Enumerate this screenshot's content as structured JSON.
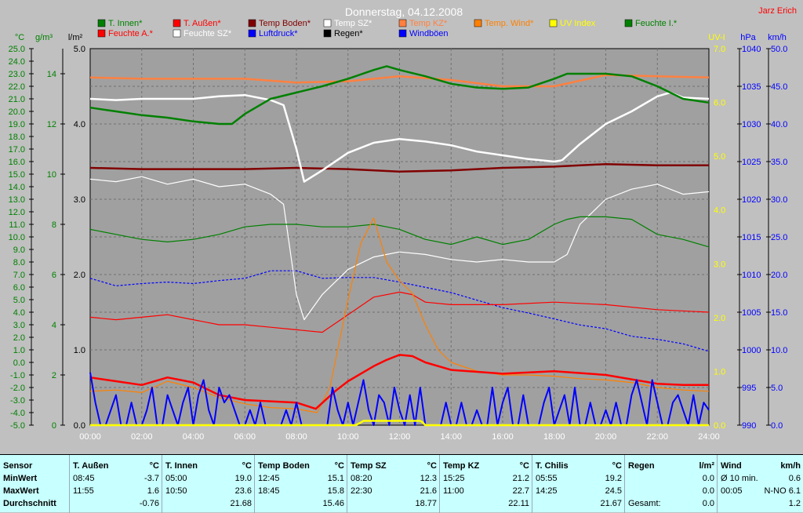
{
  "chart_data": {
    "type": "line",
    "title": "Donnerstag, 04.12.2008",
    "author": "Jarz Erich",
    "x_ticks": [
      "00:00",
      "02:00",
      "04:00",
      "06:00",
      "08:00",
      "10:00",
      "12:00",
      "14:00",
      "16:00",
      "18:00",
      "20:00",
      "22:00",
      "24:00"
    ],
    "xlim": [
      0,
      24
    ],
    "axes": {
      "temp": {
        "unit": "°C",
        "ylim": [
          -5,
          25
        ],
        "ticks": [
          "-5.0",
          "-4.0",
          "-3.0",
          "-2.0",
          "-1.0",
          "0.0",
          "1.0",
          "2.0",
          "3.0",
          "4.0",
          "5.0",
          "6.0",
          "7.0",
          "8.0",
          "9.0",
          "10.0",
          "11.0",
          "12.0",
          "13.0",
          "14.0",
          "15.0",
          "16.0",
          "17.0",
          "18.0",
          "19.0",
          "20.0",
          "21.0",
          "22.0",
          "23.0",
          "24.0",
          "25.0"
        ]
      },
      "humidity": {
        "unit": "g/m³",
        "ylim": [
          0,
          15
        ],
        "ticks": [
          "0",
          "2",
          "4",
          "6",
          "8",
          "10",
          "12",
          "14"
        ]
      },
      "rain": {
        "unit": "l/m²",
        "ylim": [
          0,
          5
        ],
        "ticks": [
          "0.0",
          "1.0",
          "2.0",
          "3.0",
          "4.0",
          "5.0"
        ]
      },
      "uv": {
        "unit": "UV-I",
        "ylim": [
          0,
          7
        ],
        "ticks": [
          "0.0",
          "1.0",
          "2.0",
          "3.0",
          "4.0",
          "5.0",
          "6.0",
          "7.0"
        ]
      },
      "pressure": {
        "unit": "hPa",
        "ylim": [
          990,
          1040
        ],
        "ticks": [
          "990",
          "995",
          "1000",
          "1005",
          "1010",
          "1015",
          "1020",
          "1025",
          "1030",
          "1035",
          "1040"
        ]
      },
      "wind": {
        "unit": "km/h",
        "ylim": [
          0,
          50
        ],
        "ticks": [
          "0.0",
          "5.0",
          "10.0",
          "15.0",
          "20.0",
          "25.0",
          "30.0",
          "35.0",
          "40.0",
          "45.0",
          "50.0"
        ]
      }
    },
    "legend": [
      {
        "name": "T. Innen*",
        "color": "#008000"
      },
      {
        "name": "T. Außen*",
        "color": "#ff0000"
      },
      {
        "name": "Temp Boden*",
        "color": "#800000"
      },
      {
        "name": "Temp SZ*",
        "color": "#ffffff"
      },
      {
        "name": "Temp KZ*",
        "color": "#ff8040"
      },
      {
        "name": "Temp. Wind*",
        "color": "#ff8000"
      },
      {
        "name": "UV Index",
        "color": "#ffff00"
      },
      {
        "name": "Feuchte I.*",
        "color": "#008000"
      },
      {
        "name": "Feuchte A.*",
        "color": "#ff0000"
      },
      {
        "name": "Feuchte SZ*",
        "color": "#ffffff"
      },
      {
        "name": "Luftdruck*",
        "color": "#0000ff"
      },
      {
        "name": "Regen*",
        "color": "#000000"
      },
      {
        "name": "Windböen",
        "color": "#0000ff"
      }
    ],
    "series": [
      {
        "key": "t_innen",
        "axis": "temp",
        "color": "#008000",
        "width": 2.5,
        "x": [
          0,
          1,
          2,
          3,
          4,
          5,
          5.5,
          6,
          7,
          8,
          9,
          10,
          11,
          11.5,
          12,
          13,
          14,
          15,
          16,
          17,
          18,
          18.5,
          19,
          20,
          21,
          22,
          23,
          24
        ],
        "y": [
          20.3,
          20.0,
          19.7,
          19.5,
          19.2,
          19.0,
          19.0,
          19.8,
          21.0,
          21.5,
          22.0,
          22.6,
          23.3,
          23.6,
          23.3,
          22.8,
          22.2,
          21.9,
          21.8,
          21.9,
          22.6,
          23.0,
          23.0,
          23.0,
          22.8,
          22.0,
          21.0,
          20.7
        ]
      },
      {
        "key": "t_aussen",
        "axis": "temp",
        "color": "#ff0000",
        "width": 2.5,
        "x": [
          0,
          1,
          2,
          3,
          4,
          5,
          6,
          7,
          8,
          8.75,
          9.5,
          10,
          11,
          11.5,
          12,
          12.5,
          13,
          14,
          16,
          18,
          20,
          22,
          23,
          24
        ],
        "y": [
          -1.2,
          -1.5,
          -1.8,
          -1.2,
          -1.6,
          -2.6,
          -3.0,
          -3.1,
          -3.2,
          -3.7,
          -2.3,
          -1.5,
          -0.3,
          0.2,
          0.6,
          0.5,
          0.0,
          -0.6,
          -0.9,
          -0.7,
          -1.0,
          -1.7,
          -1.8,
          -1.8
        ]
      },
      {
        "key": "t_boden",
        "axis": "temp",
        "color": "#800000",
        "width": 2.5,
        "x": [
          0,
          2,
          4,
          6,
          8,
          10,
          12,
          14,
          16,
          18,
          20,
          22,
          24
        ],
        "y": [
          15.5,
          15.4,
          15.4,
          15.4,
          15.5,
          15.4,
          15.2,
          15.3,
          15.5,
          15.6,
          15.8,
          15.7,
          15.7
        ]
      },
      {
        "key": "t_sz",
        "axis": "temp",
        "color": "#ffffff",
        "width": 2.5,
        "x": [
          0,
          1,
          2,
          3,
          4,
          5,
          6,
          7,
          7.5,
          8,
          8.3,
          9,
          10,
          11,
          12,
          13,
          14,
          15,
          16,
          17,
          18,
          18.3,
          19,
          20,
          21,
          22,
          22.5,
          23,
          24
        ],
        "y": [
          21.0,
          20.9,
          21.0,
          21.0,
          21.0,
          21.2,
          21.3,
          20.9,
          20.5,
          17.0,
          14.4,
          15.3,
          16.7,
          17.5,
          17.8,
          17.6,
          17.3,
          16.8,
          16.5,
          16.2,
          16.0,
          16.1,
          17.4,
          19.0,
          20.0,
          21.2,
          21.5,
          21.1,
          21.0
        ]
      },
      {
        "key": "t_kz",
        "axis": "temp",
        "color": "#ff8040",
        "width": 2.5,
        "x": [
          0,
          2,
          4,
          6,
          8,
          10,
          12,
          14,
          16,
          18,
          20,
          22,
          24
        ],
        "y": [
          22.7,
          22.6,
          22.6,
          22.6,
          22.3,
          22.4,
          22.8,
          22.5,
          22.0,
          22.0,
          22.9,
          22.8,
          22.7
        ]
      },
      {
        "key": "t_wind",
        "axis": "temp",
        "color": "#ff8000",
        "width": 1.2,
        "x": [
          0,
          1,
          2,
          3,
          4,
          5,
          6,
          7,
          8,
          8.8,
          9.3,
          10,
          10.5,
          11,
          11.5,
          12,
          12.5,
          13,
          13.5,
          14,
          15,
          16,
          17,
          18,
          19,
          20,
          21,
          22,
          23,
          24
        ],
        "y": [
          -2.3,
          -2.2,
          -2.4,
          -1.5,
          -2.0,
          -2.8,
          -3.3,
          -3.6,
          -3.7,
          -4.0,
          -2.0,
          5.0,
          9.5,
          11.5,
          8.0,
          6.5,
          5.5,
          3.0,
          1.0,
          0.0,
          -0.7,
          -1.0,
          -1.0,
          -1.1,
          -1.3,
          -1.4,
          -1.6,
          -2.0,
          -2.2,
          -2.3
        ]
      },
      {
        "key": "uv_index",
        "axis": "uv",
        "color": "#ffff00",
        "width": 2.5,
        "x": [
          0,
          10.3,
          10.5,
          10.6,
          12.8,
          12.9,
          13,
          24
        ],
        "y": [
          0,
          0,
          0.05,
          0.08,
          0.08,
          0.05,
          0,
          0
        ]
      },
      {
        "key": "feuchte_i",
        "axis": "humidity",
        "color": "#008000",
        "width": 1.2,
        "x": [
          0,
          1,
          2,
          3,
          4,
          5,
          6,
          7,
          8,
          9,
          10,
          11,
          12,
          13,
          14,
          15,
          16,
          17,
          18,
          18.5,
          19,
          20,
          21,
          22,
          23,
          24
        ],
        "y": [
          7.8,
          7.6,
          7.4,
          7.3,
          7.4,
          7.6,
          7.9,
          8.0,
          8.0,
          7.9,
          7.9,
          8.0,
          7.8,
          7.4,
          7.2,
          7.5,
          7.2,
          7.4,
          8.0,
          8.2,
          8.3,
          8.3,
          8.2,
          7.6,
          7.4,
          7.1
        ]
      },
      {
        "key": "feuchte_a",
        "axis": "humidity",
        "color": "#ff0000",
        "width": 1.2,
        "x": [
          0,
          1,
          2,
          3,
          4,
          5,
          6,
          7,
          8,
          9,
          10,
          11,
          12,
          12.5,
          13,
          14,
          16,
          18,
          20,
          22,
          24
        ],
        "y": [
          4.3,
          4.2,
          4.3,
          4.4,
          4.2,
          4.0,
          4.0,
          3.9,
          3.8,
          3.7,
          4.4,
          5.1,
          5.3,
          5.2,
          4.9,
          4.8,
          4.8,
          4.9,
          4.8,
          4.6,
          4.5
        ]
      },
      {
        "key": "feuchte_sz",
        "axis": "humidity",
        "color": "#ffffff",
        "width": 1.2,
        "x": [
          0,
          1,
          2,
          3,
          4,
          5,
          6,
          7,
          7.5,
          8,
          8.3,
          9,
          10,
          11,
          12,
          13,
          14,
          15,
          16,
          17,
          18,
          18.5,
          19,
          20,
          21,
          22,
          23,
          24
        ],
        "y": [
          9.8,
          9.7,
          9.9,
          9.6,
          9.8,
          9.5,
          9.6,
          9.2,
          8.8,
          5.2,
          4.2,
          5.2,
          6.2,
          6.7,
          6.9,
          6.8,
          6.6,
          6.5,
          6.6,
          6.5,
          6.5,
          6.8,
          8.0,
          9.0,
          9.4,
          9.6,
          9.2,
          9.3
        ]
      },
      {
        "key": "luftdruck",
        "axis": "pressure",
        "color": "#0000ff",
        "width": 1.2,
        "dashed": true,
        "x": [
          0,
          1,
          2,
          3,
          4,
          5,
          6,
          7,
          8,
          9,
          10,
          11,
          12,
          13,
          14,
          15,
          16,
          17,
          18,
          19,
          20,
          21,
          22,
          23,
          24
        ],
        "y": [
          1009.5,
          1008.5,
          1008.8,
          1009.0,
          1008.8,
          1009.2,
          1009.5,
          1010.5,
          1010.5,
          1009.5,
          1009.6,
          1009.6,
          1009.0,
          1008.3,
          1007.6,
          1006.6,
          1005.6,
          1004.9,
          1004.1,
          1003.3,
          1002.8,
          1001.8,
          1001.4,
          1000.8,
          999.8
        ]
      },
      {
        "key": "windboeen",
        "axis": "wind",
        "color": "#0000ff",
        "width": 2,
        "x": [
          0,
          0.2,
          0.4,
          0.6,
          0.8,
          1,
          1.2,
          1.4,
          1.6,
          1.8,
          2,
          2.2,
          2.4,
          2.6,
          2.8,
          3,
          3.2,
          3.4,
          3.6,
          3.8,
          4,
          4.2,
          4.4,
          4.6,
          4.8,
          5,
          5.2,
          5.4,
          5.6,
          5.8,
          6,
          6.2,
          6.4,
          6.6,
          6.8,
          7,
          7.2,
          7.4,
          7.6,
          7.8,
          8,
          8.2,
          8.4,
          8.6,
          8.8,
          9,
          9.2,
          9.4,
          9.6,
          9.8,
          10,
          10.2,
          10.4,
          10.6,
          10.8,
          11,
          11.2,
          11.4,
          11.6,
          11.8,
          12,
          12.2,
          12.4,
          12.6,
          12.8,
          13,
          13.2,
          13.4,
          13.6,
          13.8,
          14,
          14.2,
          14.4,
          14.6,
          14.8,
          15,
          15.2,
          15.4,
          15.6,
          15.8,
          16,
          16.2,
          16.4,
          16.6,
          16.8,
          17,
          17.2,
          17.4,
          17.6,
          17.8,
          18,
          18.2,
          18.4,
          18.6,
          18.8,
          19,
          19.2,
          19.4,
          19.6,
          19.8,
          20,
          20.2,
          20.4,
          20.6,
          20.8,
          21,
          21.2,
          21.4,
          21.6,
          21.8,
          22,
          22.2,
          22.4,
          22.6,
          22.8,
          23,
          23.2,
          23.4,
          23.6,
          23.8,
          24
        ],
        "y": [
          7,
          3,
          0,
          0,
          2,
          4,
          0,
          0,
          3,
          0,
          0,
          2,
          5,
          0,
          0,
          4,
          2,
          0,
          3,
          5,
          0,
          4,
          6,
          2,
          0,
          5,
          3,
          4,
          2,
          0,
          0,
          2,
          0,
          3,
          0,
          0,
          0,
          0,
          2,
          0,
          3,
          0,
          0,
          0,
          0,
          0,
          0,
          5,
          2,
          0,
          3,
          0,
          3,
          6,
          2,
          0,
          4,
          3,
          0,
          5,
          2,
          0,
          4,
          0,
          5,
          0,
          0,
          0,
          0,
          3,
          0,
          0,
          3,
          0,
          0,
          2,
          0,
          0,
          5,
          0,
          3,
          5,
          0,
          0,
          4,
          0,
          0,
          0,
          3,
          5,
          0,
          2,
          4,
          0,
          5,
          0,
          0,
          3,
          0,
          0,
          2,
          0,
          3,
          0,
          0,
          4,
          6,
          3,
          0,
          6,
          3,
          0,
          0,
          3,
          4,
          2,
          0,
          4,
          0,
          3,
          2
        ]
      }
    ]
  },
  "stats_table": {
    "col0": {
      "h": "Sensor",
      "r1": "MinWert",
      "r2": "MaxWert",
      "r3": "Durchschnitt"
    },
    "col1": {
      "h": "T. Außen",
      "u": "°C",
      "t1": "08:45",
      "v1": "-3.7",
      "t2": "11:55",
      "v2": "1.6",
      "avg": "-0.76"
    },
    "col2": {
      "h": "T. Innen",
      "u": "°C",
      "t1": "05:00",
      "v1": "19.0",
      "t2": "10:50",
      "v2": "23.6",
      "avg": "21.68"
    },
    "col3": {
      "h": "Temp Boden",
      "u": "°C",
      "t1": "12:45",
      "v1": "15.1",
      "t2": "18:45",
      "v2": "15.8",
      "avg": "15.46"
    },
    "col4": {
      "h": "Temp SZ",
      "u": "°C",
      "t1": "08:20",
      "v1": "12.3",
      "t2": "22:30",
      "v2": "21.6",
      "avg": "18.77"
    },
    "col5": {
      "h": "Temp KZ",
      "u": "°C",
      "t1": "15:25",
      "v1": "21.2",
      "t2": "11:00",
      "v2": "22.7",
      "avg": "22.11"
    },
    "col6": {
      "h": "T. Chilis",
      "u": "°C",
      "t1": "05:55",
      "v1": "19.2",
      "t2": "14:25",
      "v2": "24.5",
      "avg": "21.67"
    },
    "col7": {
      "h": "Regen",
      "u": "l/m²",
      "t1": "",
      "v1": "0.0",
      "t2": "",
      "v2": "0.0",
      "t3": "Gesamt:",
      "avg": "0.0"
    },
    "col8": {
      "h": "Wind",
      "u": "km/h",
      "t1": "Ø 10 min.",
      "v1": "0.6",
      "t2": "00:05",
      "v2": "N-NO 6.1",
      "avg": "1.2"
    }
  }
}
